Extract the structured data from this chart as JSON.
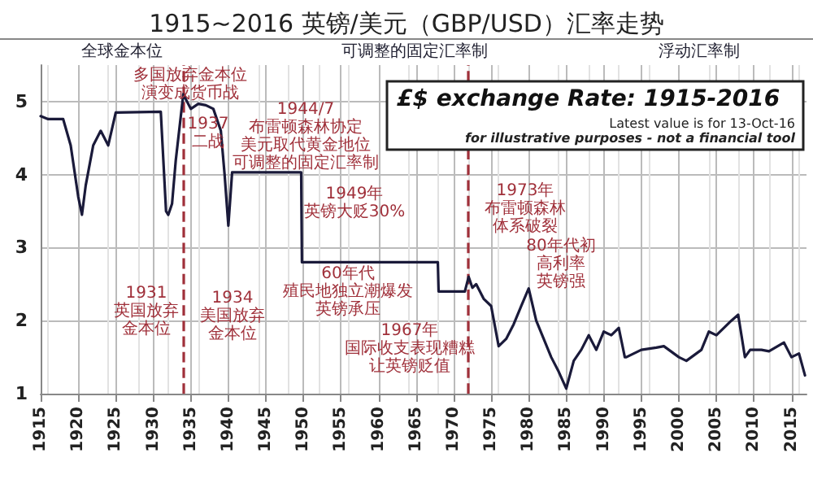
{
  "chart_data": {
    "type": "line",
    "title": "1915~2016 英镑/美元（GBP/USD）汇率走势",
    "subtitle": "£$ exchange Rate: 1915-2016",
    "x": [
      1915,
      1916,
      1918,
      1919,
      1920,
      1920.5,
      1921,
      1922,
      1923,
      1924,
      1925,
      1931,
      1931.7,
      1932,
      1932.5,
      1933,
      1934,
      1935,
      1936,
      1937,
      1938,
      1939,
      1939.5,
      1940,
      1940.5,
      1949.7,
      1949.8,
      1967.9,
      1968,
      1971.5,
      1972,
      1972.5,
      1973,
      1974,
      1975,
      1976,
      1977,
      1978,
      1979,
      1980,
      1981,
      1982,
      1983,
      1984,
      1985,
      1986,
      1987,
      1988,
      1989,
      1990,
      1991,
      1992,
      1992.8,
      1993,
      1995,
      1997,
      1998,
      2000,
      2001,
      2003,
      2004,
      2005,
      2007,
      2007.9,
      2008.8,
      2009.5,
      2011,
      2012,
      2014,
      2015,
      2016,
      2016.8
    ],
    "series": [
      {
        "color": "#1a1a3a",
        "values": [
          4.8,
          4.76,
          4.76,
          4.4,
          3.7,
          3.45,
          3.85,
          4.4,
          4.6,
          4.4,
          4.85,
          4.86,
          3.5,
          3.45,
          3.6,
          4.2,
          5.1,
          4.9,
          4.97,
          4.95,
          4.9,
          4.6,
          4.0,
          3.3,
          4.03,
          4.03,
          2.8,
          2.8,
          2.4,
          2.4,
          2.6,
          2.45,
          2.5,
          2.3,
          2.2,
          1.65,
          1.75,
          1.95,
          2.2,
          2.44,
          2.0,
          1.75,
          1.5,
          1.3,
          1.07,
          1.45,
          1.6,
          1.8,
          1.6,
          1.85,
          1.8,
          1.9,
          1.5,
          1.5,
          1.6,
          1.63,
          1.65,
          1.5,
          1.45,
          1.6,
          1.85,
          1.8,
          2.0,
          2.08,
          1.5,
          1.6,
          1.6,
          1.58,
          1.7,
          1.5,
          1.55,
          1.25
        ]
      }
    ],
    "xlim": [
      1915,
      2017
    ],
    "xticks": [
      1915,
      1920,
      1925,
      1930,
      1935,
      1940,
      1945,
      1950,
      1955,
      1960,
      1965,
      1970,
      1975,
      1980,
      1985,
      1990,
      1995,
      2000,
      2005,
      2010,
      2015
    ],
    "ylim": [
      1,
      5.5
    ],
    "yticks": [
      1,
      2,
      3,
      4,
      5
    ],
    "grid": true,
    "marker": "none",
    "line_style": "solid",
    "ref_lines": [
      {
        "axis": "x",
        "value": 1934,
        "color": "#a0303a",
        "line_style": "dashed"
      },
      {
        "axis": "x",
        "value": 1972,
        "color": "#a0303a",
        "line_style": "dashed"
      }
    ],
    "annotations": [
      "全球金本位",
      "可调整的固定汇率制",
      "浮动汇率制",
      "Latest value is for 13-Oct-16",
      "for illustrative purposes - not a financial tool",
      "多国放弃金本位演变成货币战",
      "1937二战",
      "1944/7布雷顿森林协定美元取代黄金地位可调整的固定汇率制",
      "1949年英镑大贬30%",
      "1931英国放弃金本位",
      "1934美国放弃金本位",
      "60年代殖民地独立潮爆发英镑承压",
      "1967年国际收支表现糟糕让英镑贬值",
      "1973年布雷顿森林体系破裂",
      "80年代初高利率英镑强"
    ]
  }
}
